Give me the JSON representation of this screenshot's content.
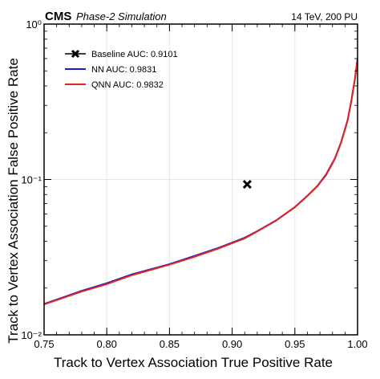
{
  "header": {
    "experiment": "CMS",
    "tag": "Phase-2 Simulation",
    "conditions": "14 TeV, 200 PU"
  },
  "chart_data": {
    "type": "line",
    "title": "",
    "xlabel": "Track to Vertex Association True Positive Rate",
    "ylabel": "Track to Vertex Association False Positive Rate",
    "xlim": [
      0.75,
      1.0
    ],
    "ylim": [
      0.01,
      1.0
    ],
    "yscale": "log",
    "grid": true,
    "legend_position": "top-left",
    "x_ticks": [
      "0.75",
      "0.80",
      "0.85",
      "0.90",
      "0.95",
      "1.00"
    ],
    "y_ticks": [
      {
        "value": 0.01,
        "label": "10⁻²"
      },
      {
        "value": 0.1,
        "label": "10⁻¹"
      },
      {
        "value": 1.0,
        "label": "10⁰"
      }
    ],
    "series": [
      {
        "name": "Baseline AUC: 0.9101",
        "kind": "marker",
        "color": "#000000",
        "x": [
          0.912
        ],
        "y": [
          0.093
        ]
      },
      {
        "name": "NN AUC: 0.9831",
        "kind": "line",
        "color": "#1a1adb",
        "x": [
          0.75,
          0.78,
          0.8,
          0.82,
          0.85,
          0.87,
          0.89,
          0.91,
          0.92,
          0.935,
          0.95,
          0.96,
          0.968,
          0.975,
          0.982,
          0.987,
          0.992,
          0.995,
          0.998,
          1.0
        ],
        "y": [
          0.0158,
          0.0192,
          0.0215,
          0.0245,
          0.0285,
          0.0322,
          0.0365,
          0.0422,
          0.0465,
          0.0545,
          0.0665,
          0.0785,
          0.091,
          0.108,
          0.137,
          0.175,
          0.24,
          0.32,
          0.45,
          0.6
        ]
      },
      {
        "name": "QNN AUC: 0.9832",
        "kind": "line",
        "color": "#e8211a",
        "x": [
          0.75,
          0.78,
          0.8,
          0.82,
          0.85,
          0.87,
          0.89,
          0.91,
          0.92,
          0.935,
          0.95,
          0.96,
          0.968,
          0.975,
          0.982,
          0.987,
          0.992,
          0.995,
          0.998,
          1.0
        ],
        "y": [
          0.0157,
          0.019,
          0.0212,
          0.0242,
          0.0283,
          0.0318,
          0.0362,
          0.0418,
          0.0463,
          0.0543,
          0.0663,
          0.0783,
          0.0905,
          0.107,
          0.136,
          0.174,
          0.238,
          0.318,
          0.448,
          0.6
        ]
      }
    ]
  }
}
